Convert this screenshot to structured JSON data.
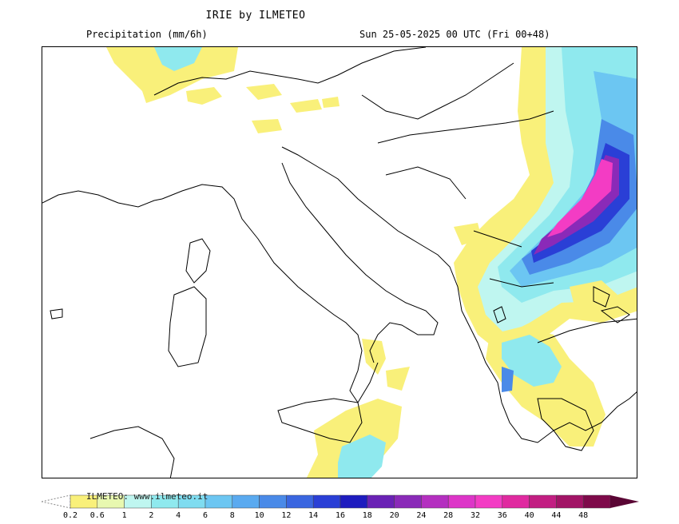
{
  "header": {
    "title": "IRIE by ILMETEO",
    "subtitle_left": "Precipitation (mm/6h)",
    "subtitle_right": "Sun 25-05-2025 00 UTC (Fri 00+48)"
  },
  "legend": {
    "watermark": "ILMETEO: www.ilmeteo.it",
    "levels": [
      "0.2",
      "0.6",
      "1",
      "2",
      "4",
      "6",
      "8",
      "10",
      "12",
      "14",
      "16",
      "18",
      "20",
      "24",
      "28",
      "32",
      "36",
      "40",
      "44",
      "48"
    ],
    "colors": [
      "#f9f07a",
      "#e8f8b0",
      "#bff6f0",
      "#8fe9ee",
      "#7fdcf0",
      "#6cc6f2",
      "#5aaaf0",
      "#4a8ae8",
      "#3a66e0",
      "#2a3fd6",
      "#1e1cbf",
      "#6a22b5",
      "#8a2ab8",
      "#b42fc0",
      "#dd35c8",
      "#f33cc4",
      "#e02aa0",
      "#c21e82",
      "#a21466",
      "#7e0a4a",
      "#5a0534"
    ]
  },
  "map": {
    "region": "Italy and the Balkans"
  }
}
